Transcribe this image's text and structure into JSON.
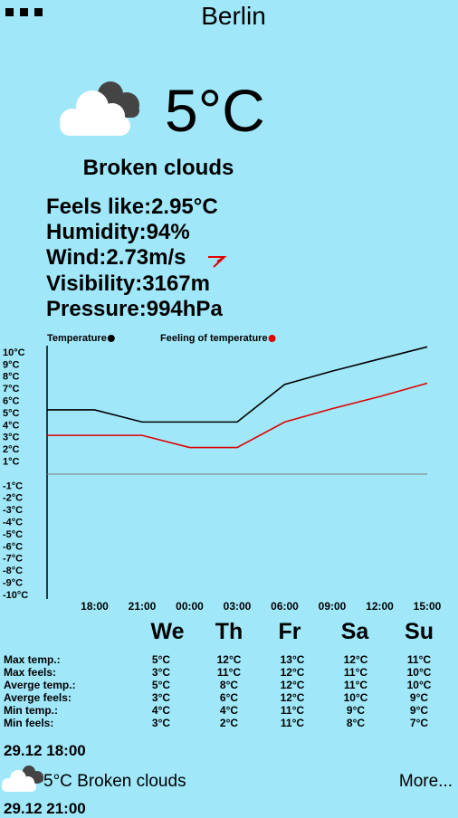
{
  "header": {
    "city": "Berlin"
  },
  "current": {
    "temperature": "5°C",
    "description": "Broken clouds",
    "details": [
      "Feels like:2.95°C",
      "Humidity:94%",
      "Wind:2.73m/s",
      "Visibility:3167m",
      "Pressure:994hPa"
    ]
  },
  "chart_data": {
    "type": "line",
    "categories": [
      null,
      "18:00",
      "21:00",
      "00:00",
      "03:00",
      "06:00",
      "09:00",
      "12:00",
      "15:00"
    ],
    "series": [
      {
        "name": "Temperature",
        "color": "#000000",
        "values": [
          5.3,
          5.3,
          4.3,
          4.3,
          4.3,
          7.4,
          8.5,
          9.5,
          10.5
        ]
      },
      {
        "name": "Feeling of temperature",
        "color": "#e00000",
        "values": [
          3.2,
          3.2,
          3.2,
          2.2,
          2.2,
          4.3,
          5.4,
          6.4,
          7.5
        ]
      }
    ],
    "ylim": [
      -10,
      10
    ],
    "yticks": [
      {
        "value": 10,
        "label": "10°C"
      },
      {
        "value": 9,
        "label": "9°C"
      },
      {
        "value": 8,
        "label": "8°C"
      },
      {
        "value": 7,
        "label": "7°C"
      },
      {
        "value": 6,
        "label": "6°C"
      },
      {
        "value": 5,
        "label": "5°C"
      },
      {
        "value": 4,
        "label": "4°C"
      },
      {
        "value": 3,
        "label": "3°C"
      },
      {
        "value": 2,
        "label": "2°C"
      },
      {
        "value": 1,
        "label": "1°C"
      },
      {
        "value": -1,
        "label": "-1°C"
      },
      {
        "value": -2,
        "label": "-2°C"
      },
      {
        "value": -3,
        "label": "-3°C"
      },
      {
        "value": -4,
        "label": "-4°C"
      },
      {
        "value": -5,
        "label": "-5°C"
      },
      {
        "value": -6,
        "label": "-6°C"
      },
      {
        "value": -7,
        "label": "-7°C"
      },
      {
        "value": -8,
        "label": "-8°C"
      },
      {
        "value": -9,
        "label": "-9°C"
      },
      {
        "value": -10,
        "label": "-10°C"
      }
    ]
  },
  "forecast": {
    "days": [
      "We",
      "Th",
      "Fr",
      "Sa",
      "Su"
    ],
    "rows": [
      {
        "label": "Max temp.:",
        "values": [
          "5°C",
          "12°C",
          "13°C",
          "12°C",
          "11°C"
        ]
      },
      {
        "label": "Max feels:",
        "values": [
          "3°C",
          "11°C",
          "12°C",
          "11°C",
          "10°C"
        ]
      },
      {
        "label": "Averge temp.:",
        "values": [
          "5°C",
          "8°C",
          "12°C",
          "11°C",
          "10°C"
        ]
      },
      {
        "label": "Averge feels:",
        "values": [
          "3°C",
          "6°C",
          "12°C",
          "10°C",
          "9°C"
        ]
      },
      {
        "label": "Min temp.:",
        "values": [
          "4°C",
          "4°C",
          "11°C",
          "9°C",
          "9°C"
        ]
      },
      {
        "label": "Min feels:",
        "values": [
          "3°C",
          "2°C",
          "11°C",
          "8°C",
          "7°C"
        ]
      }
    ]
  },
  "hourly": [
    {
      "time": "29.12 18:00",
      "summary": "5°C Broken clouds",
      "more": "More..."
    },
    {
      "time": "29.12 21:00"
    }
  ]
}
